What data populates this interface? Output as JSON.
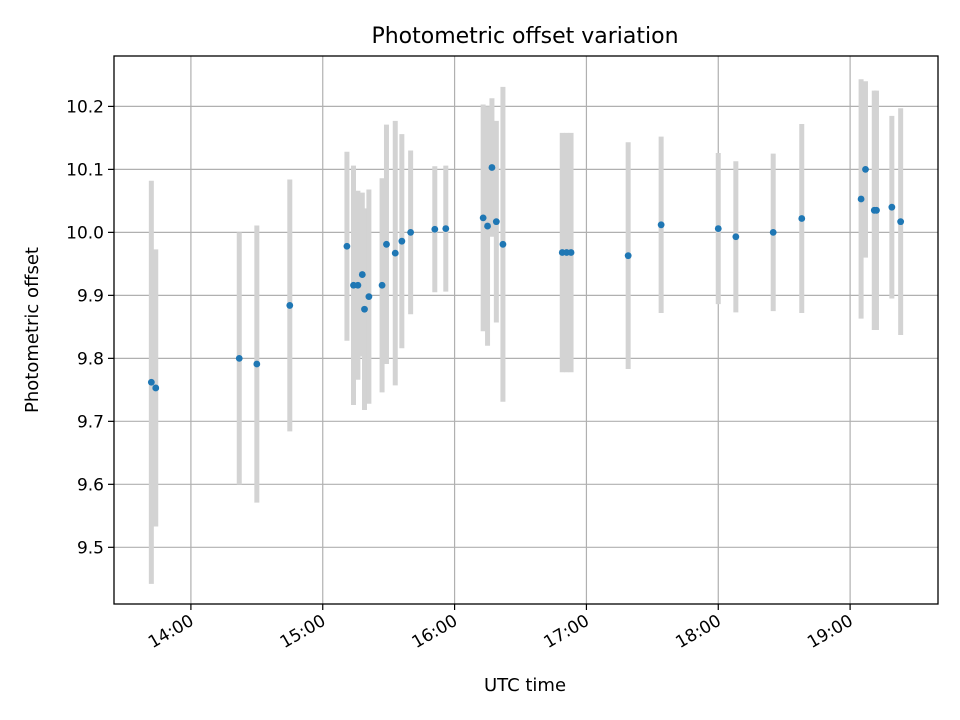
{
  "chart_data": {
    "type": "scatter",
    "title": "Photometric offset variation",
    "xlabel": "UTC time",
    "ylabel": "Photometric offset",
    "x_axis": "time-of-day",
    "xlim": [
      "13:25",
      "19:40"
    ],
    "ylim": [
      9.41,
      10.28
    ],
    "x_ticks": [
      "14:00",
      "15:00",
      "16:00",
      "17:00",
      "18:00",
      "19:00"
    ],
    "y_ticks": [
      9.5,
      9.6,
      9.7,
      9.8,
      9.9,
      10.0,
      10.1,
      10.2
    ],
    "grid": true,
    "legend": "none",
    "marker_color": "#1f77b4",
    "errorbar_color": "#d3d3d3",
    "points": [
      {
        "x": "13:42",
        "y": 9.762,
        "err": 0.32
      },
      {
        "x": "13:44",
        "y": 9.753,
        "err": 0.22
      },
      {
        "x": "14:22",
        "y": 9.8,
        "err": 0.2
      },
      {
        "x": "14:30",
        "y": 9.791,
        "err": 0.22
      },
      {
        "x": "14:45",
        "y": 9.884,
        "err": 0.2
      },
      {
        "x": "15:11",
        "y": 9.978,
        "err": 0.15
      },
      {
        "x": "15:14",
        "y": 9.916,
        "err": 0.19
      },
      {
        "x": "15:16",
        "y": 9.916,
        "err": 0.15
      },
      {
        "x": "15:18",
        "y": 9.933,
        "err": 0.13
      },
      {
        "x": "15:19",
        "y": 9.878,
        "err": 0.16
      },
      {
        "x": "15:21",
        "y": 9.898,
        "err": 0.17
      },
      {
        "x": "15:27",
        "y": 9.916,
        "err": 0.17
      },
      {
        "x": "15:29",
        "y": 9.981,
        "err": 0.19
      },
      {
        "x": "15:33",
        "y": 9.967,
        "err": 0.21
      },
      {
        "x": "15:36",
        "y": 9.986,
        "err": 0.17
      },
      {
        "x": "15:40",
        "y": 10.0,
        "err": 0.13
      },
      {
        "x": "15:51",
        "y": 10.005,
        "err": 0.1
      },
      {
        "x": "15:56",
        "y": 10.006,
        "err": 0.1
      },
      {
        "x": "16:13",
        "y": 10.023,
        "err": 0.18
      },
      {
        "x": "16:15",
        "y": 10.01,
        "err": 0.19
      },
      {
        "x": "16:17",
        "y": 10.103,
        "err": 0.11
      },
      {
        "x": "16:19",
        "y": 10.017,
        "err": 0.16
      },
      {
        "x": "16:22",
        "y": 9.981,
        "err": 0.25
      },
      {
        "x": "16:49",
        "y": 9.968,
        "err": 0.19
      },
      {
        "x": "16:51",
        "y": 9.968,
        "err": 0.19
      },
      {
        "x": "16:53",
        "y": 9.968,
        "err": 0.19
      },
      {
        "x": "17:19",
        "y": 9.963,
        "err": 0.18
      },
      {
        "x": "17:34",
        "y": 10.012,
        "err": 0.14
      },
      {
        "x": "18:00",
        "y": 10.006,
        "err": 0.12
      },
      {
        "x": "18:08",
        "y": 9.993,
        "err": 0.12
      },
      {
        "x": "18:25",
        "y": 10.0,
        "err": 0.125
      },
      {
        "x": "18:38",
        "y": 10.022,
        "err": 0.15
      },
      {
        "x": "19:05",
        "y": 10.053,
        "err": 0.19
      },
      {
        "x": "19:07",
        "y": 10.1,
        "err": 0.14
      },
      {
        "x": "19:11",
        "y": 10.035,
        "err": 0.19
      },
      {
        "x": "19:12",
        "y": 10.035,
        "err": 0.19
      },
      {
        "x": "19:19",
        "y": 10.04,
        "err": 0.145
      },
      {
        "x": "19:23",
        "y": 10.017,
        "err": 0.18
      }
    ]
  }
}
